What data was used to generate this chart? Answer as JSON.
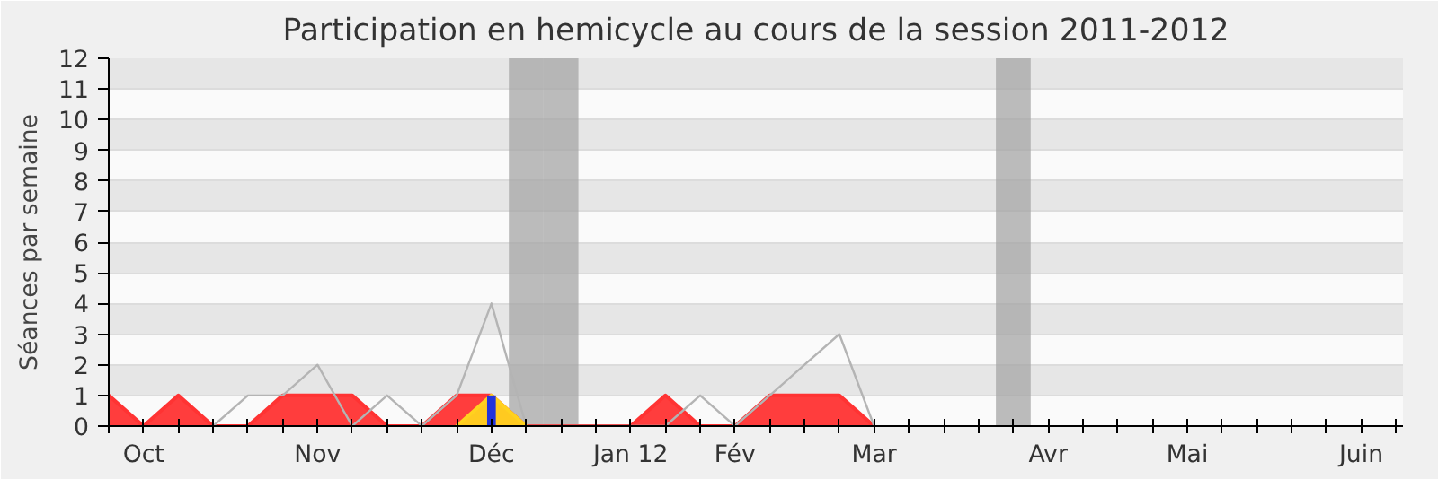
{
  "chart_data": {
    "type": "area",
    "title": "Participation en hemicycle au cours de la session 2011-2012",
    "ylabel": "Séances par semaine",
    "categories": [
      null,
      "Oct",
      null,
      null,
      null,
      null,
      "Nov",
      null,
      null,
      null,
      null,
      "Déc",
      null,
      null,
      null,
      "Jan 12",
      null,
      null,
      "Fév",
      null,
      null,
      null,
      "Mar",
      null,
      null,
      null,
      null,
      "Avr",
      null,
      null,
      null,
      "Mai",
      null,
      null,
      null,
      null,
      "Juin",
      null
    ],
    "ylim": [
      0,
      12
    ],
    "yticks": [
      0,
      1,
      2,
      3,
      4,
      5,
      6,
      7,
      8,
      9,
      10,
      11,
      12
    ],
    "grid": "y",
    "series": [
      {
        "type": "bar",
        "color": "#a6a6a6",
        "values": [
          null,
          null,
          null,
          null,
          null,
          null,
          null,
          null,
          null,
          null,
          null,
          null,
          12,
          12,
          null,
          null,
          null,
          null,
          null,
          null,
          null,
          null,
          null,
          null,
          null,
          null,
          12,
          null,
          null,
          null,
          null,
          null,
          null,
          null,
          null,
          null,
          null,
          null
        ]
      },
      {
        "color": "#ff3333",
        "values": [
          1,
          0,
          1,
          0,
          0,
          1,
          1,
          1,
          0,
          0,
          1,
          1,
          0,
          0,
          0,
          0,
          1,
          0,
          0,
          1,
          1,
          1,
          0,
          null,
          null,
          null,
          null,
          null,
          null,
          null,
          null,
          null,
          null,
          null,
          null,
          null,
          null,
          null
        ]
      },
      {
        "type": "line",
        "color": "#b4b4b4",
        "values": [
          null,
          null,
          null,
          0,
          1,
          1,
          2,
          0,
          1,
          0,
          1,
          4,
          0,
          0,
          0,
          0,
          0,
          1,
          0,
          1,
          2,
          3,
          0,
          null,
          null,
          null,
          null,
          null,
          null,
          null,
          null,
          null,
          null,
          null,
          null,
          null,
          null,
          null
        ]
      },
      {
        "type": "area",
        "color": "#ffd21f",
        "values": [
          null,
          null,
          null,
          null,
          null,
          null,
          null,
          null,
          null,
          null,
          0,
          1,
          0,
          null,
          null,
          null,
          null,
          null,
          null,
          null,
          null,
          null,
          null,
          null,
          null,
          null,
          null,
          null,
          null,
          null,
          null,
          null,
          null,
          null,
          null,
          null,
          null,
          null
        ]
      },
      {
        "type": "bar",
        "color": "#2233dd",
        "values": [
          null,
          null,
          null,
          null,
          null,
          null,
          null,
          null,
          null,
          null,
          null,
          1,
          null,
          null,
          null,
          null,
          null,
          null,
          null,
          null,
          null,
          null,
          null,
          null,
          null,
          null,
          null,
          null,
          null,
          null,
          null,
          null,
          null,
          null,
          null,
          null,
          null,
          null
        ]
      }
    ]
  }
}
